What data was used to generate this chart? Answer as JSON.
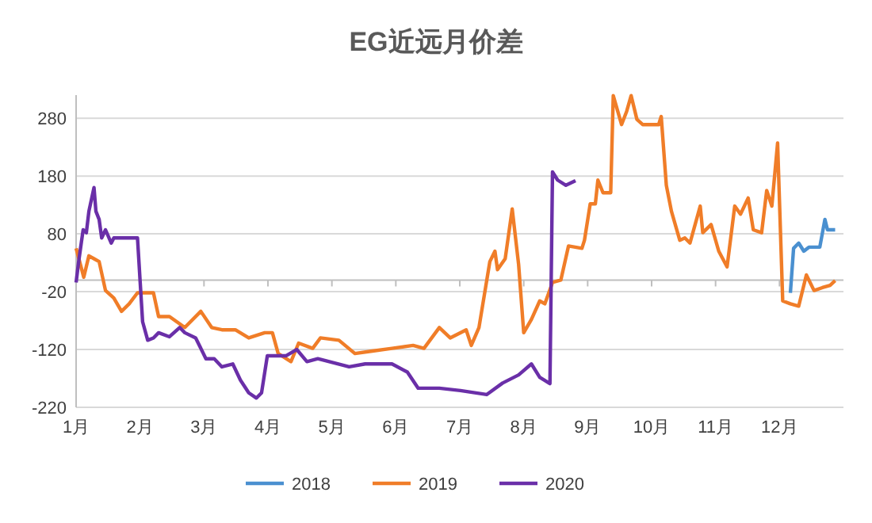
{
  "chart_data": {
    "type": "line",
    "title": "EG近远月价差",
    "xlim": [
      1,
      13
    ],
    "xticks": [
      {
        "value": 1,
        "label": "1月"
      },
      {
        "value": 2,
        "label": "2月"
      },
      {
        "value": 3,
        "label": "3月"
      },
      {
        "value": 4,
        "label": "4月"
      },
      {
        "value": 5,
        "label": "5月"
      },
      {
        "value": 6,
        "label": "6月"
      },
      {
        "value": 7,
        "label": "7月"
      },
      {
        "value": 8,
        "label": "8月"
      },
      {
        "value": 9,
        "label": "9月"
      },
      {
        "value": 10,
        "label": "10月"
      },
      {
        "value": 11,
        "label": "11月"
      },
      {
        "value": 12,
        "label": "12月"
      }
    ],
    "ylim": [
      -220,
      320
    ],
    "yticks": [
      -220,
      -120,
      -20,
      80,
      180,
      280
    ],
    "grid": "y",
    "legend": "bottom",
    "marker": "none",
    "line_style": "solid",
    "series": [
      {
        "name": "2018",
        "color": "#4a90d0",
        "x": [
          12.17,
          12.22,
          12.3,
          12.38,
          12.46,
          12.63,
          12.71,
          12.75,
          12.87
        ],
        "values": [
          -22,
          55,
          64,
          50,
          57,
          57,
          105,
          87,
          87
        ]
      },
      {
        "name": "2019",
        "color": "#f07d28",
        "x": [
          1.0,
          1.12,
          1.2,
          1.28,
          1.36,
          1.46,
          1.59,
          1.71,
          1.83,
          1.96,
          2.21,
          2.29,
          2.46,
          2.7,
          2.95,
          3.12,
          3.28,
          3.49,
          3.7,
          3.95,
          4.07,
          4.16,
          4.36,
          4.48,
          4.7,
          4.82,
          5.11,
          5.36,
          5.61,
          5.94,
          6.27,
          6.44,
          6.68,
          6.85,
          7.1,
          7.18,
          7.3,
          7.47,
          7.55,
          7.59,
          7.71,
          7.82,
          7.92,
          8.0,
          8.12,
          8.25,
          8.33,
          8.45,
          8.58,
          8.7,
          8.91,
          8.95,
          9.04,
          9.12,
          9.16,
          9.24,
          9.36,
          9.4,
          9.53,
          9.61,
          9.68,
          9.77,
          9.86,
          10.11,
          10.15,
          10.23,
          10.31,
          10.44,
          10.52,
          10.6,
          10.68,
          10.76,
          10.8,
          10.93,
          11.05,
          11.18,
          11.3,
          11.39,
          11.51,
          11.59,
          11.72,
          11.8,
          11.88,
          11.97,
          12.05,
          12.17,
          12.3,
          12.42,
          12.54,
          12.67,
          12.79,
          12.87
        ],
        "values": [
          55,
          5,
          42,
          37,
          32,
          -18,
          -31,
          -54,
          -41,
          -22,
          -22,
          -63,
          -63,
          -82,
          -54,
          -82,
          -86,
          -86,
          -100,
          -91,
          -91,
          -127,
          -141,
          -109,
          -118,
          -100,
          -104,
          -127,
          -123,
          -118,
          -113,
          -118,
          -82,
          -100,
          -86,
          -113,
          -82,
          32,
          50,
          18,
          37,
          123,
          27,
          -91,
          -68,
          -36,
          -41,
          -4,
          0,
          59,
          55,
          69,
          132,
          132,
          173,
          151,
          151,
          319,
          269,
          292,
          319,
          278,
          269,
          269,
          283,
          164,
          119,
          69,
          73,
          64,
          96,
          128,
          82,
          96,
          50,
          23,
          128,
          114,
          142,
          87,
          82,
          155,
          128,
          237,
          -36,
          -41,
          -45,
          9,
          -18,
          -13,
          -9,
          -1
        ]
      },
      {
        "name": "2020",
        "color": "#6a2fa8",
        "x": [
          1.0,
          1.04,
          1.11,
          1.16,
          1.2,
          1.28,
          1.31,
          1.36,
          1.4,
          1.46,
          1.55,
          1.59,
          1.96,
          2.0,
          2.04,
          2.12,
          2.21,
          2.29,
          2.46,
          2.62,
          2.7,
          2.87,
          3.03,
          3.16,
          3.28,
          3.45,
          3.57,
          3.7,
          3.82,
          3.9,
          3.99,
          4.11,
          4.28,
          4.45,
          4.61,
          4.78,
          5.27,
          5.52,
          5.94,
          6.18,
          6.35,
          6.68,
          7.01,
          7.42,
          7.67,
          7.92,
          8.12,
          8.25,
          8.41,
          8.45,
          8.53,
          8.66,
          8.81
        ],
        "values": [
          -4,
          32,
          87,
          82,
          119,
          160,
          119,
          105,
          73,
          87,
          64,
          73,
          73,
          0,
          -72,
          -104,
          -100,
          -91,
          -98,
          -82,
          -91,
          -100,
          -136,
          -136,
          -150,
          -145,
          -173,
          -195,
          -204,
          -195,
          -131,
          -131,
          -131,
          -120,
          -141,
          -136,
          -150,
          -145,
          -145,
          -159,
          -187,
          -187,
          -191,
          -198,
          -178,
          -164,
          -145,
          -168,
          -179,
          187,
          173,
          164,
          172
        ]
      }
    ]
  }
}
